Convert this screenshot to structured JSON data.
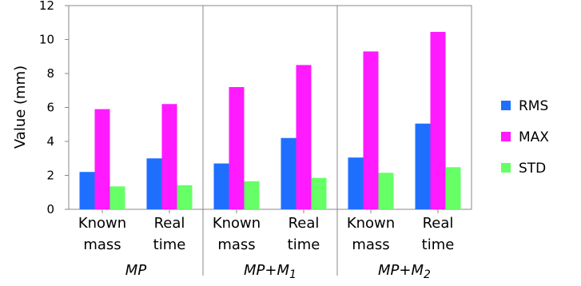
{
  "chart_data": {
    "type": "bar",
    "ylabel": "Value (mm)",
    "ylim": [
      0,
      12
    ],
    "yticks": [
      0,
      2,
      4,
      6,
      8,
      10,
      12
    ],
    "grid": false,
    "legend_position": "right",
    "groups": [
      {
        "label": "MP",
        "label_base": "MP",
        "label_sub": "",
        "categories": [
          {
            "line1": "Known",
            "line2": "mass"
          },
          {
            "line1": "Real",
            "line2": "time"
          }
        ]
      },
      {
        "label": "MP+M1",
        "label_base": "MP+M",
        "label_sub": "1",
        "categories": [
          {
            "line1": "Known",
            "line2": "mass"
          },
          {
            "line1": "Real",
            "line2": "time"
          }
        ]
      },
      {
        "label": "MP+M2",
        "label_base": "MP+M",
        "label_sub": "2",
        "categories": [
          {
            "line1": "Known",
            "line2": "mass"
          },
          {
            "line1": "Real",
            "line2": "time"
          }
        ]
      }
    ],
    "series": [
      {
        "name": "RMS",
        "color": "#1f6fff",
        "values": [
          2.2,
          3.0,
          2.7,
          4.2,
          3.05,
          5.05
        ]
      },
      {
        "name": "MAX",
        "color": "#ff1aff",
        "values": [
          5.9,
          6.2,
          7.2,
          8.5,
          9.3,
          10.45
        ]
      },
      {
        "name": "STD",
        "color": "#66ff66",
        "values": [
          1.35,
          1.42,
          1.65,
          1.85,
          2.15,
          2.48
        ]
      }
    ]
  }
}
